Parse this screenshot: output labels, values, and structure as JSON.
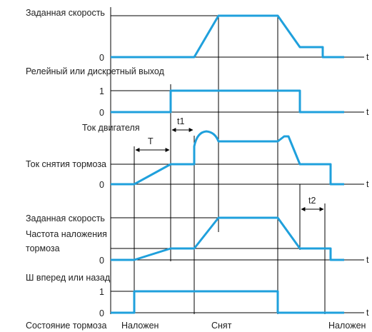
{
  "colors": {
    "signal": "#1fa0dc",
    "axis": "#000000",
    "text": "#222222"
  },
  "labels": {
    "speed_ref_1": "Заданная скорость",
    "relay_output": "Релейный или дискретный выход",
    "motor_current": "Ток двигателя",
    "brake_release_current": "Ток снятия тормоза",
    "speed_ref_2": "Заданная скорость",
    "brake_engage_freq_line1": "Частота наложения",
    "brake_engage_freq_line2": "тормоза",
    "forward_reverse": "Ш вперед или назад",
    "brake_state": "Состояние тормоза"
  },
  "axis_values": {
    "zero_1": "0",
    "zero_2": "0",
    "one_2": "1",
    "zero_3": "0",
    "zero_4": "0",
    "zero_5": "0",
    "one_5": "1"
  },
  "time_labels": {
    "t_1": "t",
    "t_2": "t",
    "t_3": "t",
    "t_4": "t",
    "t_5": "t"
  },
  "intervals": {
    "T": "T",
    "t1": "t1",
    "t2": "t2"
  },
  "brake_states": {
    "engaged_1": "Наложен",
    "released": "Снят",
    "engaged_2": "Наложен"
  }
}
